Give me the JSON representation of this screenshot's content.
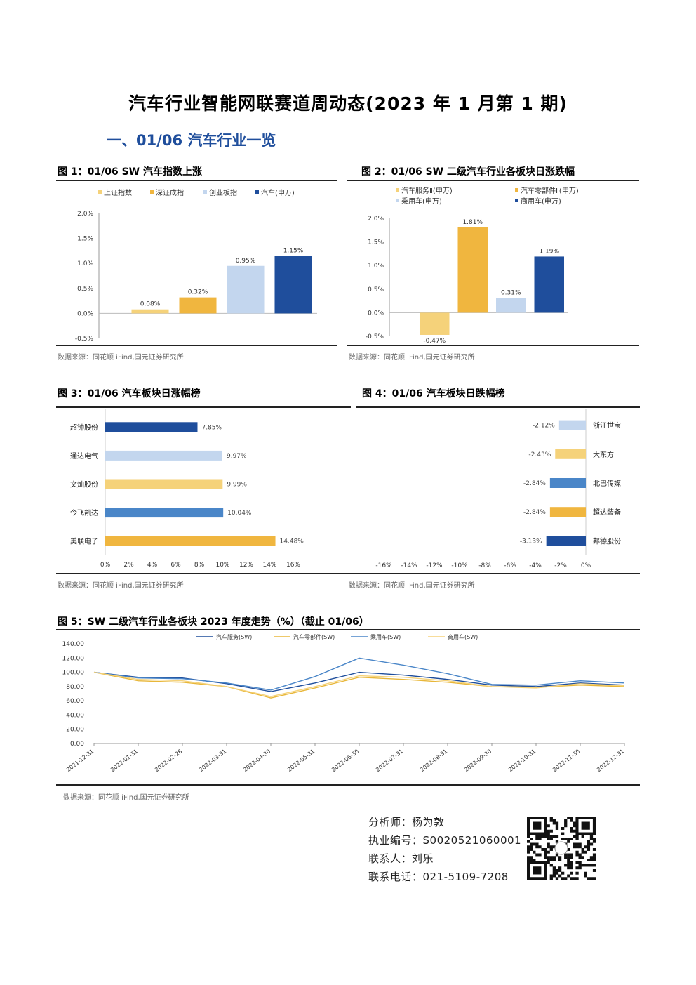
{
  "page": {
    "title": "汽车行业智能网联赛道周动态(2023 年 1 月第 1 期)",
    "section": "一、01/06 汽车行业一览",
    "source": "数据来源：同花顺 iFind,国元证券研究所"
  },
  "fig1": {
    "title": "图 1：01/06 SW 汽车指数上涨",
    "chart_data": {
      "type": "bar",
      "categories": [
        "上证指数",
        "深证成指",
        "创业板指",
        "汽车(申万)"
      ],
      "values": [
        0.08,
        0.32,
        0.95,
        1.15
      ],
      "value_labels": [
        "0.08%",
        "0.32%",
        "0.95%",
        "1.15%"
      ],
      "colors": [
        "#f5d27a",
        "#f0b63f",
        "#c3d6ee",
        "#1f4e9c"
      ],
      "yticks": [
        "2.0%",
        "1.5%",
        "1.0%",
        "0.5%",
        "0.0%",
        "-0.5%"
      ],
      "ylim": [
        -0.5,
        2.0
      ],
      "legend": "top"
    }
  },
  "fig2": {
    "title": "图 2：01/06 SW 二级汽车行业各板块日涨跌幅",
    "chart_data": {
      "type": "bar",
      "categories": [
        "汽车服务Ⅱ(申万)",
        "汽车零部件Ⅱ(申万)",
        "乘用车(申万)",
        "商用车(申万)"
      ],
      "values": [
        -0.47,
        1.81,
        0.31,
        1.19
      ],
      "value_labels": [
        "-0.47%",
        "1.81%",
        "0.31%",
        "1.19%"
      ],
      "colors": [
        "#f5d27a",
        "#f0b63f",
        "#c3d6ee",
        "#1f4e9c"
      ],
      "yticks": [
        "2.0%",
        "1.5%",
        "1.0%",
        "0.5%",
        "0.0%",
        "-0.5%"
      ],
      "ylim": [
        -0.5,
        2.0
      ],
      "legend": "top"
    }
  },
  "fig3": {
    "title": "图 3：01/06 汽车板块日涨幅榜",
    "chart_data": {
      "type": "bar",
      "orientation": "horizontal",
      "categories": [
        "超钟股份",
        "通达电气",
        "文灿股份",
        "今飞凯达",
        "美联电子"
      ],
      "values": [
        7.85,
        9.97,
        9.99,
        10.04,
        14.48
      ],
      "value_labels": [
        "7.85%",
        "9.97%",
        "9.99%",
        "10.04%",
        "14.48%"
      ],
      "colors": [
        "#1f4e9c",
        "#c3d6ee",
        "#f5d27a",
        "#4a86c8",
        "#f0b63f"
      ],
      "xticks": [
        "0%",
        "2%",
        "4%",
        "6%",
        "8%",
        "10%",
        "12%",
        "14%",
        "16%"
      ],
      "xlim": [
        0,
        16
      ]
    }
  },
  "fig4": {
    "title": "图 4：01/06 汽车板块日跌幅榜",
    "chart_data": {
      "type": "bar",
      "orientation": "horizontal",
      "categories": [
        "浙江世宝",
        "大东方",
        "北巴传媒",
        "超达装备",
        "邦德股份"
      ],
      "values": [
        -2.12,
        -2.43,
        -2.84,
        -2.84,
        -3.13
      ],
      "value_labels": [
        "-2.12%",
        "-2.43%",
        "-2.84%",
        "-2.84%",
        "-3.13%"
      ],
      "colors": [
        "#c3d6ee",
        "#f5d27a",
        "#4a86c8",
        "#f0b63f",
        "#1f4e9c"
      ],
      "xticks": [
        "-16%",
        "-14%",
        "-12%",
        "-10%",
        "-8%",
        "-6%",
        "-4%",
        "-2%",
        "0%"
      ],
      "xlim": [
        -16,
        0
      ]
    }
  },
  "fig5": {
    "title": "图 5：SW 二级汽车行业各板块 2023 年度走势（%）（截止 01/06）",
    "chart_data": {
      "type": "line",
      "x": [
        "2021-12-31",
        "2022-01-31",
        "2022-02-28",
        "2022-03-31",
        "2022-04-30",
        "2022-05-31",
        "2022-06-30",
        "2022-07-31",
        "2022-08-31",
        "2022-09-30",
        "2022-10-31",
        "2022-11-30",
        "2022-12-31"
      ],
      "yticks": [
        "140.00",
        "120.00",
        "100.00",
        "80.00",
        "60.00",
        "40.00",
        "20.00",
        "0.00"
      ],
      "ylim": [
        0,
        140
      ],
      "legend": "top",
      "series": [
        {
          "name": "汽车服务(SW)",
          "color": "#1f4e9c",
          "values": [
            100,
            93,
            92,
            84,
            73,
            85,
            100,
            96,
            90,
            82,
            80,
            85,
            82
          ]
        },
        {
          "name": "汽车零部件(SW)",
          "color": "#e8b73a",
          "values": [
            100,
            88,
            86,
            80,
            64,
            78,
            93,
            90,
            86,
            80,
            79,
            82,
            80
          ]
        },
        {
          "name": "乘用车(SW)",
          "color": "#4a86c8",
          "values": [
            100,
            92,
            91,
            85,
            75,
            94,
            120,
            110,
            98,
            83,
            82,
            88,
            85
          ]
        },
        {
          "name": "商用车(SW)",
          "color": "#f5d27a",
          "values": [
            100,
            90,
            88,
            80,
            66,
            80,
            95,
            93,
            88,
            80,
            78,
            84,
            81
          ]
        }
      ]
    }
  },
  "contact": {
    "analyst": "分析师：杨为敦",
    "license": "执业编号：S0020521060001",
    "person": "联系人：刘乐",
    "phone": "联系电话：021-5109-7208"
  }
}
